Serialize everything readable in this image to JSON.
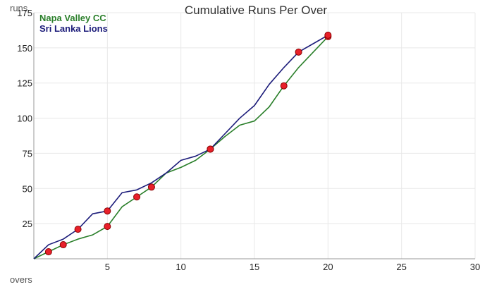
{
  "chart_data": {
    "type": "line",
    "title": "Cumulative Runs Per Over",
    "xlabel": "overs",
    "ylabel": "runs",
    "xlim": [
      0,
      30
    ],
    "ylim": [
      0,
      175
    ],
    "x_ticks": [
      5,
      10,
      15,
      20,
      25,
      30
    ],
    "y_ticks": [
      25,
      50,
      75,
      100,
      125,
      150,
      175
    ],
    "grid": true,
    "legend_position": "top-left",
    "colors": {
      "grid": "#e8e8e8",
      "axis": "#999999",
      "wicket_fill": "#e8202a",
      "wicket_stroke": "#8b0000"
    },
    "series": [
      {
        "name": "Napa Valley CC",
        "color": "#2a7f2a",
        "x": [
          0,
          1,
          2,
          3,
          4,
          5,
          6,
          7,
          8,
          9,
          10,
          11,
          12,
          13,
          14,
          15,
          16,
          17,
          18,
          19,
          20
        ],
        "y": [
          0,
          5,
          10,
          14,
          17,
          23,
          37,
          44,
          51,
          61,
          65,
          70,
          78,
          87,
          95,
          98,
          108,
          123,
          136,
          147,
          158
        ],
        "wickets": [
          1,
          2,
          5,
          7,
          8,
          12,
          17,
          20
        ]
      },
      {
        "name": "Sri Lanka Lions",
        "color": "#1c1c7a",
        "x": [
          0,
          1,
          2,
          3,
          4,
          5,
          6,
          7,
          8,
          9,
          10,
          11,
          12,
          13,
          14,
          15,
          16,
          17,
          18,
          19,
          20
        ],
        "y": [
          0,
          10,
          14,
          21,
          32,
          34,
          47,
          49,
          54,
          61,
          70,
          73,
          78,
          89,
          100,
          109,
          124,
          136,
          147,
          153,
          159
        ],
        "wickets": [
          3,
          5,
          12,
          18,
          20
        ]
      }
    ]
  }
}
